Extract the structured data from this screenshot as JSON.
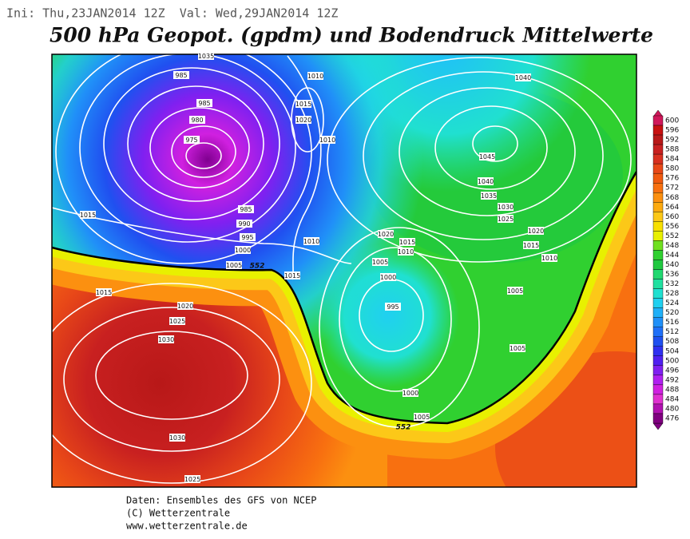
{
  "header": {
    "run": "Ini: Thu,23JAN2014 12Z  Val: Wed,29JAN2014 12Z",
    "title": "500 hPa Geopot. (gpdm) und Bodendruck Mittelwerte"
  },
  "colorbar": {
    "ticks": [
      600,
      596,
      592,
      588,
      584,
      580,
      576,
      572,
      568,
      564,
      560,
      556,
      552,
      548,
      544,
      540,
      536,
      532,
      528,
      524,
      520,
      516,
      512,
      508,
      504,
      500,
      496,
      492,
      488,
      484,
      480,
      476
    ],
    "colors": [
      "#d0185a",
      "#c81010",
      "#b81818",
      "#c82020",
      "#d83020",
      "#e84818",
      "#f05a10",
      "#f87010",
      "#fc9010",
      "#fcaa10",
      "#fcc818",
      "#f8e000",
      "#e8f000",
      "#70e020",
      "#30d030",
      "#20c840",
      "#20d870",
      "#20e0a0",
      "#20e0d0",
      "#20d0f0",
      "#20b0f8",
      "#2090f8",
      "#2070f8",
      "#2050f0",
      "#3030f0",
      "#5020f0",
      "#8020f0",
      "#b020f0",
      "#d020e0",
      "#e030d0",
      "#b010b0",
      "#800080"
    ]
  },
  "isobar_labels": [
    1010,
    1015,
    1020,
    1010,
    985,
    985,
    980,
    975,
    985,
    990,
    995,
    1000,
    1005,
    1015,
    1010,
    1015,
    1015,
    1020,
    1025,
    1030,
    1030,
    1025,
    1040,
    1045,
    1040,
    1035,
    1030,
    1025,
    1020,
    1015,
    1010,
    1020,
    1015,
    1010,
    1005,
    1000,
    995,
    1005,
    1005,
    1000,
    1005,
    1035
  ],
  "contour_labels": [
    552,
    552
  ],
  "footer": [
    "Daten: Ensembles des GFS von NCEP",
    "(C) Wetterzentrale",
    "www.wetterzentrale.de"
  ]
}
